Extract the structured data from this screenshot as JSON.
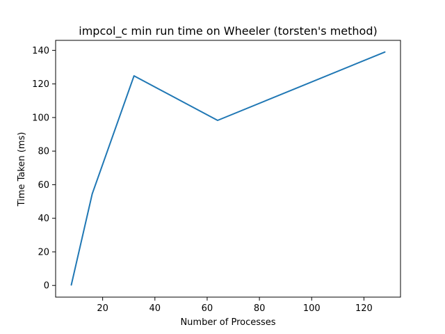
{
  "chart_data": {
    "type": "line",
    "title": "impcol_c min run time on Wheeler (torsten's method)",
    "xlabel": "Number of Processes",
    "ylabel": "Time Taken (ms)",
    "xlim": [
      2.0,
      134.0
    ],
    "ylim": [
      -6.95,
      145.95
    ],
    "xticks": [
      20,
      40,
      60,
      80,
      100,
      120
    ],
    "yticks": [
      0,
      20,
      40,
      60,
      80,
      100,
      120,
      140
    ],
    "grid": false,
    "series": [
      {
        "color": "#1f77b4",
        "x": [
          8,
          16,
          32,
          64,
          128
        ],
        "y": [
          0.3,
          54.5,
          124.8,
          98.3,
          139.0
        ]
      }
    ]
  }
}
